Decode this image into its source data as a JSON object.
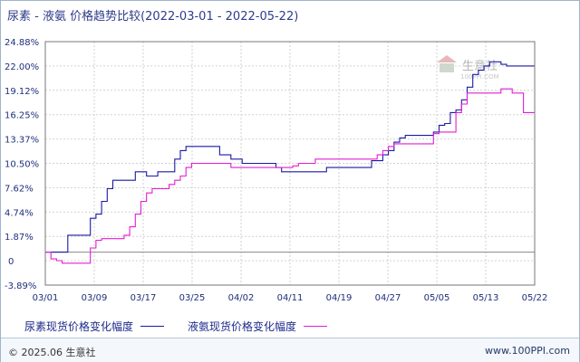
{
  "chart_data": {
    "type": "line",
    "title": "尿素 - 液氨 价格趋势比较(2022-03-01 - 2022-05-22)",
    "x_labels": [
      "03/01",
      "03/09",
      "03/17",
      "03/25",
      "04/02",
      "04/11",
      "04/19",
      "04/27",
      "05/05",
      "05/13",
      "05/22"
    ],
    "y_ticks": [
      "24.88%",
      "22.00%",
      "19.12%",
      "16.25%",
      "13.37%",
      "10.50%",
      "7.62%",
      "4.74%",
      "1.87%",
      "0",
      "-3.89%"
    ],
    "ylim": [
      -3.89,
      24.88
    ],
    "grid": true,
    "legend_position": "bottom-left",
    "series": [
      {
        "name": "尿素现货价格变化幅度",
        "color": "#1a1aa6",
        "points": [
          [
            0,
            0
          ],
          [
            3,
            0
          ],
          [
            4,
            2
          ],
          [
            6,
            2
          ],
          [
            7,
            2
          ],
          [
            8,
            4
          ],
          [
            9,
            4.5
          ],
          [
            10,
            6
          ],
          [
            11,
            7.5
          ],
          [
            12,
            8.5
          ],
          [
            13,
            8.5
          ],
          [
            14,
            8.5
          ],
          [
            15,
            8.5
          ],
          [
            16,
            9.5
          ],
          [
            17,
            9.5
          ],
          [
            18,
            9
          ],
          [
            19,
            9
          ],
          [
            20,
            9.5
          ],
          [
            21,
            9.5
          ],
          [
            22,
            9.5
          ],
          [
            23,
            11
          ],
          [
            24,
            12
          ],
          [
            25,
            12.5
          ],
          [
            26,
            12.5
          ],
          [
            27,
            12.5
          ],
          [
            28,
            12.5
          ],
          [
            29,
            12.5
          ],
          [
            30,
            12.5
          ],
          [
            31,
            11.5
          ],
          [
            32,
            11.5
          ],
          [
            33,
            11
          ],
          [
            34,
            11
          ],
          [
            35,
            10.5
          ],
          [
            36,
            10.5
          ],
          [
            37,
            10.5
          ],
          [
            38,
            10.5
          ],
          [
            39,
            10.5
          ],
          [
            40,
            10.5
          ],
          [
            41,
            10
          ],
          [
            42,
            9.5
          ],
          [
            43,
            9.5
          ],
          [
            44,
            9.5
          ],
          [
            45,
            9.5
          ],
          [
            46,
            9.5
          ],
          [
            47,
            9.5
          ],
          [
            48,
            9.5
          ],
          [
            49,
            9.5
          ],
          [
            50,
            10
          ],
          [
            51,
            10
          ],
          [
            52,
            10
          ],
          [
            53,
            10
          ],
          [
            54,
            10
          ],
          [
            55,
            10
          ],
          [
            56,
            10
          ],
          [
            57,
            10
          ],
          [
            58,
            10.8
          ],
          [
            59,
            10.8
          ],
          [
            60,
            11.5
          ],
          [
            61,
            12
          ],
          [
            62,
            13
          ],
          [
            63,
            13.5
          ],
          [
            64,
            13.8
          ],
          [
            65,
            13.8
          ],
          [
            66,
            13.8
          ],
          [
            67,
            13.8
          ],
          [
            68,
            13.8
          ],
          [
            69,
            14.2
          ],
          [
            70,
            15
          ],
          [
            71,
            15.2
          ],
          [
            72,
            16.5
          ],
          [
            73,
            16.8
          ],
          [
            74,
            18
          ],
          [
            75,
            19.5
          ],
          [
            76,
            21
          ],
          [
            77,
            21.5
          ],
          [
            78,
            22
          ],
          [
            79,
            22.5
          ],
          [
            80,
            22.5
          ],
          [
            81,
            22.2
          ],
          [
            82,
            22
          ],
          [
            83,
            22
          ],
          [
            84,
            22
          ],
          [
            85,
            22
          ],
          [
            86,
            22
          ],
          [
            87,
            22
          ]
        ]
      },
      {
        "name": "液氨现货价格变化幅度",
        "color": "#e21ed3",
        "points": [
          [
            0,
            0
          ],
          [
            1,
            -0.8
          ],
          [
            2,
            -1
          ],
          [
            3,
            -1.3
          ],
          [
            4,
            -1.3
          ],
          [
            5,
            -1.3
          ],
          [
            6,
            -1.3
          ],
          [
            7,
            -1.3
          ],
          [
            8,
            0.5
          ],
          [
            9,
            1.4
          ],
          [
            10,
            1.6
          ],
          [
            11,
            1.6
          ],
          [
            12,
            1.6
          ],
          [
            13,
            1.6
          ],
          [
            14,
            2
          ],
          [
            15,
            3
          ],
          [
            16,
            4.5
          ],
          [
            17,
            6
          ],
          [
            18,
            7
          ],
          [
            19,
            7.5
          ],
          [
            20,
            7.5
          ],
          [
            21,
            7.5
          ],
          [
            22,
            8
          ],
          [
            23,
            8.5
          ],
          [
            24,
            9
          ],
          [
            25,
            10
          ],
          [
            26,
            10.5
          ],
          [
            27,
            10.5
          ],
          [
            28,
            10.5
          ],
          [
            29,
            10.5
          ],
          [
            30,
            10.5
          ],
          [
            31,
            10.5
          ],
          [
            32,
            10.5
          ],
          [
            33,
            10
          ],
          [
            34,
            10
          ],
          [
            35,
            10
          ],
          [
            36,
            10
          ],
          [
            37,
            10
          ],
          [
            38,
            10
          ],
          [
            39,
            10
          ],
          [
            40,
            10
          ],
          [
            41,
            10
          ],
          [
            42,
            10
          ],
          [
            43,
            10
          ],
          [
            44,
            10.2
          ],
          [
            45,
            10.5
          ],
          [
            46,
            10.5
          ],
          [
            47,
            10.5
          ],
          [
            48,
            11
          ],
          [
            49,
            11
          ],
          [
            50,
            11
          ],
          [
            51,
            11
          ],
          [
            52,
            11
          ],
          [
            53,
            11
          ],
          [
            54,
            11
          ],
          [
            55,
            11
          ],
          [
            56,
            11
          ],
          [
            57,
            11
          ],
          [
            58,
            11
          ],
          [
            59,
            11.5
          ],
          [
            60,
            12
          ],
          [
            61,
            12.5
          ],
          [
            62,
            12.8
          ],
          [
            63,
            12.8
          ],
          [
            64,
            12.8
          ],
          [
            65,
            12.8
          ],
          [
            66,
            12.8
          ],
          [
            67,
            12.8
          ],
          [
            68,
            12.8
          ],
          [
            69,
            14
          ],
          [
            70,
            14.2
          ],
          [
            71,
            14.2
          ],
          [
            72,
            14.2
          ],
          [
            73,
            16.5
          ],
          [
            74,
            17.5
          ],
          [
            75,
            18.8
          ],
          [
            76,
            18.8
          ],
          [
            77,
            18.8
          ],
          [
            78,
            18.8
          ],
          [
            79,
            18.8
          ],
          [
            80,
            18.8
          ],
          [
            81,
            19.3
          ],
          [
            82,
            19.3
          ],
          [
            83,
            18.8
          ],
          [
            84,
            18.8
          ],
          [
            85,
            16.5
          ],
          [
            86,
            16.5
          ],
          [
            87,
            16.5
          ]
        ]
      }
    ]
  },
  "watermark": {
    "text": "生意社",
    "sub": "100PPI.COM"
  },
  "footer": {
    "copyright": "© 2025.06 生意社",
    "site": "www.100PPI.com"
  }
}
